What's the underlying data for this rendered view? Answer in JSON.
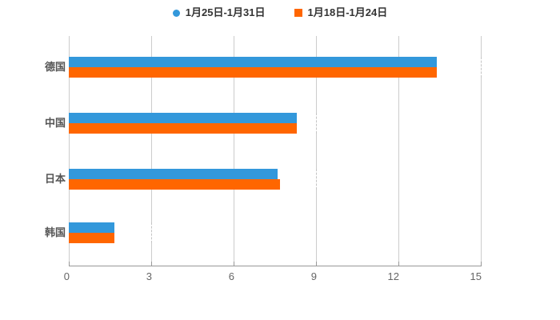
{
  "chart_data": {
    "type": "bar",
    "orientation": "horizontal",
    "title": "",
    "xlabel": "",
    "ylabel": "",
    "categories": [
      "德国",
      "中国",
      "日本",
      "韩国"
    ],
    "series": [
      {
        "name": "1月25日-1月31日",
        "color": "#3398db",
        "marker": "circle",
        "values": [
          13.4,
          8.3,
          7.6,
          1.65
        ]
      },
      {
        "name": "1月18日-1月24日",
        "color": "#ff6600",
        "marker": "square",
        "values": [
          13.4,
          8.3,
          7.7,
          1.65
        ]
      }
    ],
    "x_ticks": [
      "0",
      "3",
      "6",
      "9",
      "12",
      "15"
    ],
    "xlim": [
      0,
      15
    ],
    "grid": true,
    "legend_position": "top",
    "axis_color": "#999999",
    "gridline_color": "#cccccc",
    "tick_label_color": "#666666",
    "category_label_color": "#555555",
    "legend_text_color": "#333333",
    "background_color": "#ffffff"
  }
}
